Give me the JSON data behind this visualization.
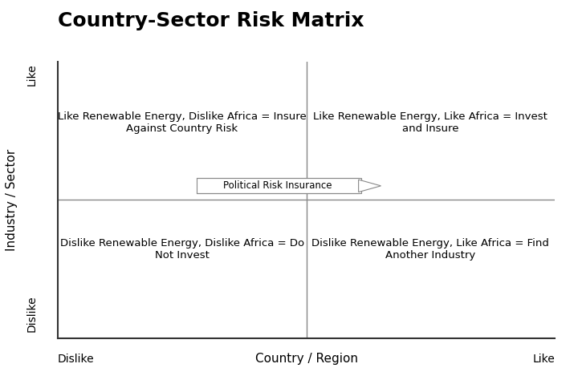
{
  "title": "Country-Sector Risk Matrix",
  "title_fontsize": 18,
  "title_fontweight": "bold",
  "xlabel": "Country / Region",
  "ylabel": "Industry / Sector",
  "xlabel_fontsize": 11,
  "ylabel_fontsize": 11,
  "x_dislike_label": "Dislike",
  "x_like_label": "Like",
  "y_dislike_label": "Dislike",
  "y_like_label": "Like",
  "tick_label_fontsize": 10,
  "quadrant_text": {
    "top_left": "Like Renewable Energy, Dislike Africa = Insure\nAgainst Country Risk",
    "top_right": "Like Renewable Energy, Like Africa = Invest\nand Insure",
    "bottom_left": "Dislike Renewable Energy, Dislike Africa = Do\nNot Invest",
    "bottom_right": "Dislike Renewable Energy, Like Africa = Find\nAnother Industry"
  },
  "quadrant_text_fontsize": 9.5,
  "arrow_label": "Political Risk Insurance",
  "arrow_label_fontsize": 8.5,
  "background_color": "#ffffff",
  "text_color": "#000000",
  "divider_color": "#888888",
  "spine_color": "#333333"
}
